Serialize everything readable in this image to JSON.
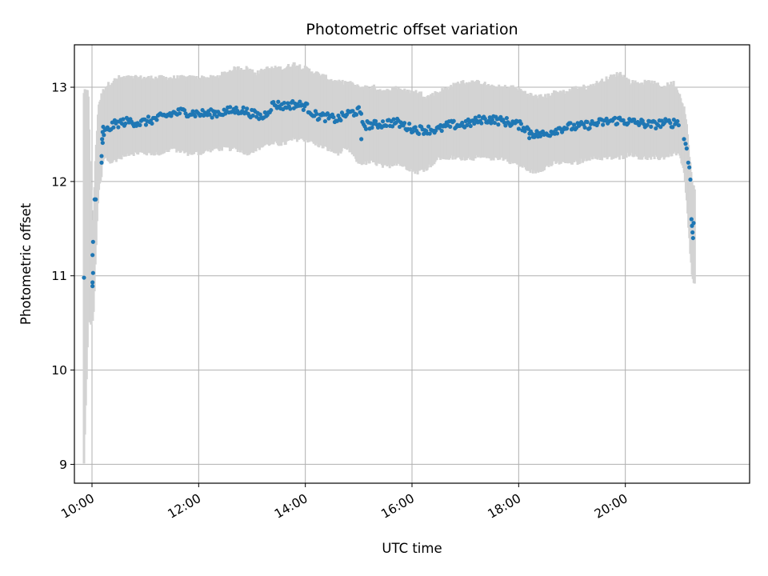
{
  "chart_data": {
    "type": "scatter",
    "title": "Photometric offset variation",
    "xlabel": "UTC time",
    "ylabel": "Photometric offset",
    "xlim": [
      9.67,
      22.33
    ],
    "ylim": [
      8.8,
      13.45
    ],
    "x_ticks": [
      {
        "value": 10,
        "label": "10:00"
      },
      {
        "value": 12,
        "label": "12:00"
      },
      {
        "value": 14,
        "label": "14:00"
      },
      {
        "value": 16,
        "label": "16:00"
      },
      {
        "value": 18,
        "label": "18:00"
      },
      {
        "value": 20,
        "label": "20:00"
      }
    ],
    "y_ticks": [
      {
        "value": 9,
        "label": "9"
      },
      {
        "value": 10,
        "label": "10"
      },
      {
        "value": 11,
        "label": "11"
      },
      {
        "value": 12,
        "label": "12"
      },
      {
        "value": 13,
        "label": "13"
      }
    ],
    "grid": true,
    "colors": {
      "points": "#1f77b4",
      "errorbars": "#d3d3d3",
      "grid": "#b0b0b0"
    },
    "envelope": {
      "x": [
        9.85,
        9.93,
        10.0,
        10.03,
        10.07,
        10.12,
        10.17,
        10.2,
        10.25,
        10.35,
        10.5,
        10.7,
        11.0,
        11.3,
        11.5,
        11.8,
        12.0,
        12.3,
        12.5,
        12.7,
        12.9,
        13.1,
        13.3,
        13.6,
        13.8,
        14.0,
        14.2,
        14.4,
        14.6,
        14.8,
        15.0,
        15.1,
        15.3,
        15.5,
        15.7,
        15.9,
        16.1,
        16.3,
        16.5,
        16.7,
        16.9,
        17.1,
        17.3,
        17.5,
        17.7,
        17.9,
        18.1,
        18.3,
        18.5,
        18.7,
        18.9,
        19.1,
        19.3,
        19.5,
        19.7,
        19.9,
        20.1,
        20.3,
        20.5,
        20.7,
        20.9,
        21.0,
        21.1,
        21.15,
        21.2,
        21.25,
        21.3
      ],
      "lower": [
        9.0,
        10.5,
        10.5,
        10.6,
        11.2,
        11.9,
        12.0,
        12.2,
        12.25,
        12.2,
        12.25,
        12.3,
        12.3,
        12.3,
        12.35,
        12.3,
        12.3,
        12.35,
        12.35,
        12.35,
        12.3,
        12.35,
        12.4,
        12.4,
        12.45,
        12.45,
        12.4,
        12.35,
        12.3,
        12.35,
        12.2,
        12.2,
        12.2,
        12.15,
        12.2,
        12.15,
        12.1,
        12.15,
        12.25,
        12.25,
        12.25,
        12.25,
        12.25,
        12.25,
        12.25,
        12.2,
        12.15,
        12.1,
        12.15,
        12.2,
        12.2,
        12.2,
        12.25,
        12.25,
        12.25,
        12.25,
        12.3,
        12.25,
        12.25,
        12.25,
        12.3,
        12.3,
        12.1,
        11.8,
        11.4,
        11.0,
        10.9
      ],
      "upper": [
        12.95,
        12.95,
        11.5,
        11.7,
        12.3,
        12.8,
        12.9,
        12.95,
        13.0,
        13.05,
        13.1,
        13.1,
        13.1,
        13.1,
        13.1,
        13.1,
        13.1,
        13.1,
        13.15,
        13.2,
        13.2,
        13.15,
        13.2,
        13.2,
        13.25,
        13.2,
        13.15,
        13.1,
        13.05,
        13.05,
        13.0,
        13.0,
        13.0,
        12.95,
        13.0,
        12.95,
        12.95,
        12.9,
        12.95,
        13.0,
        13.05,
        13.05,
        13.05,
        13.0,
        13.0,
        13.0,
        12.95,
        12.9,
        12.9,
        12.95,
        12.95,
        13.0,
        13.0,
        13.05,
        13.1,
        13.15,
        13.05,
        13.05,
        13.05,
        13.0,
        13.05,
        12.95,
        12.8,
        12.6,
        12.3,
        12.0,
        11.9
      ]
    },
    "trend": {
      "x": [
        10.2,
        10.3,
        10.4,
        10.5,
        10.7,
        10.9,
        11.1,
        11.3,
        11.5,
        11.7,
        12.0,
        12.2,
        12.4,
        12.6,
        12.8,
        13.0,
        13.2,
        13.4,
        13.6,
        13.8,
        14.0,
        14.2,
        14.4,
        14.6,
        14.8,
        15.0,
        15.1,
        15.3,
        15.5,
        15.7,
        15.9,
        16.1,
        16.3,
        16.5,
        16.7,
        16.9,
        17.1,
        17.3,
        17.5,
        17.7,
        17.9,
        18.1,
        18.3,
        18.5,
        18.7,
        18.9,
        19.1,
        19.3,
        19.5,
        19.7,
        19.9,
        20.1,
        20.3,
        20.5,
        20.7,
        20.9,
        21.0
      ],
      "y": [
        12.5,
        12.55,
        12.6,
        12.62,
        12.64,
        12.62,
        12.65,
        12.68,
        12.72,
        12.74,
        12.72,
        12.72,
        12.73,
        12.75,
        12.76,
        12.72,
        12.68,
        12.82,
        12.8,
        12.82,
        12.8,
        12.7,
        12.68,
        12.66,
        12.72,
        12.75,
        12.6,
        12.6,
        12.62,
        12.63,
        12.58,
        12.55,
        12.55,
        12.55,
        12.6,
        12.6,
        12.62,
        12.66,
        12.66,
        12.64,
        12.62,
        12.58,
        12.5,
        12.5,
        12.55,
        12.58,
        12.58,
        12.6,
        12.62,
        12.64,
        12.65,
        12.63,
        12.62,
        12.6,
        12.62,
        12.62,
        12.64
      ]
    },
    "outliers": [
      {
        "x": 9.85,
        "y": 10.98
      },
      {
        "x": 10.01,
        "y": 10.93
      },
      {
        "x": 10.01,
        "y": 10.89
      },
      {
        "x": 10.02,
        "y": 11.03
      },
      {
        "x": 10.01,
        "y": 11.22
      },
      {
        "x": 10.02,
        "y": 11.36
      },
      {
        "x": 10.05,
        "y": 11.81
      },
      {
        "x": 10.07,
        "y": 11.81
      },
      {
        "x": 10.18,
        "y": 12.2
      },
      {
        "x": 10.18,
        "y": 12.27
      },
      {
        "x": 10.19,
        "y": 12.45
      },
      {
        "x": 10.2,
        "y": 12.41
      },
      {
        "x": 10.21,
        "y": 12.58
      },
      {
        "x": 10.25,
        "y": 12.55
      },
      {
        "x": 15.05,
        "y": 12.45
      },
      {
        "x": 18.2,
        "y": 12.46
      },
      {
        "x": 21.1,
        "y": 12.45
      },
      {
        "x": 21.13,
        "y": 12.4
      },
      {
        "x": 21.15,
        "y": 12.35
      },
      {
        "x": 21.18,
        "y": 12.2
      },
      {
        "x": 21.2,
        "y": 12.15
      },
      {
        "x": 21.22,
        "y": 12.02
      },
      {
        "x": 21.24,
        "y": 11.6
      },
      {
        "x": 21.25,
        "y": 11.53
      },
      {
        "x": 21.26,
        "y": 11.46
      },
      {
        "x": 21.27,
        "y": 11.4
      },
      {
        "x": 21.28,
        "y": 11.56
      }
    ]
  }
}
